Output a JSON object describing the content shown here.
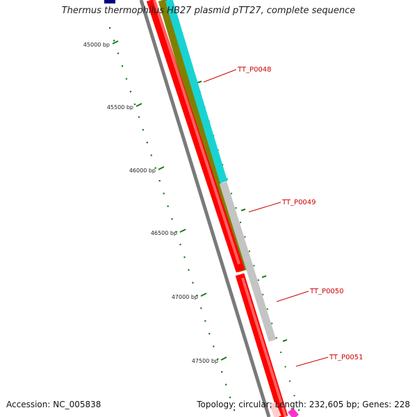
{
  "title": "Thermus thermophilus HB27 plasmid pTT27, complete sequence",
  "footer": {
    "accession_label": "Accession:",
    "accession": "NC_005838",
    "topology_label": "Topology:",
    "topology": "circular",
    "length_label": "Length:",
    "length": "232,605 bp",
    "genes_label": "Genes:",
    "genes": "228"
  },
  "ticks": [
    {
      "label": "45000 bp",
      "bp": 45000
    },
    {
      "label": "45500 bp",
      "bp": 45500
    },
    {
      "label": "46000 bp",
      "bp": 46000
    },
    {
      "label": "46500 bp",
      "bp": 46500
    },
    {
      "label": "47000 bp",
      "bp": 47000
    },
    {
      "label": "47500 bp",
      "bp": 47500
    }
  ],
  "genes": [
    {
      "name": "TT_P0048"
    },
    {
      "name": "TT_P0049"
    },
    {
      "name": "TT_P0050"
    },
    {
      "name": "TT_P0051"
    }
  ],
  "colors": {
    "label": "#cc0000",
    "tick": "#1a7a1a",
    "gc_track": "#7a7a7a",
    "cds": "#ff0000",
    "cyan_feature": "#19d3d3",
    "olive_feature": "#808000",
    "grey_feature": "#c4c4c4",
    "navy_feature": "#000080",
    "magenta_feature": "#ff33cc"
  }
}
